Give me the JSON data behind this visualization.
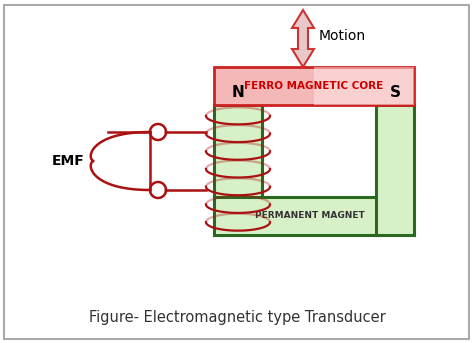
{
  "bg_color": "#ffffff",
  "border_color": "#aaaaaa",
  "title": "Figure- Electromagnetic type Transducer",
  "title_fontsize": 10.5,
  "ferro_label": "FERRO MAGNETIC CORE",
  "ferro_box_fill": "#f5b8b8",
  "ferro_box_fill2": "#ffffff",
  "ferro_border_color": "#cc2222",
  "perm_label": "PERMANENT MAGNET",
  "motion_label": "Motion",
  "emf_label": "EMF",
  "N_label": "N",
  "S_label": "S",
  "magnet_fill": "#d8f0c8",
  "magnet_fill2": "#f0fce8",
  "magnet_border": "#2a6a20",
  "coil_color": "#aa1111",
  "wire_color": "#aa1111",
  "arrow_fill": "#e8c8c8",
  "arrow_edge": "#cc3333"
}
